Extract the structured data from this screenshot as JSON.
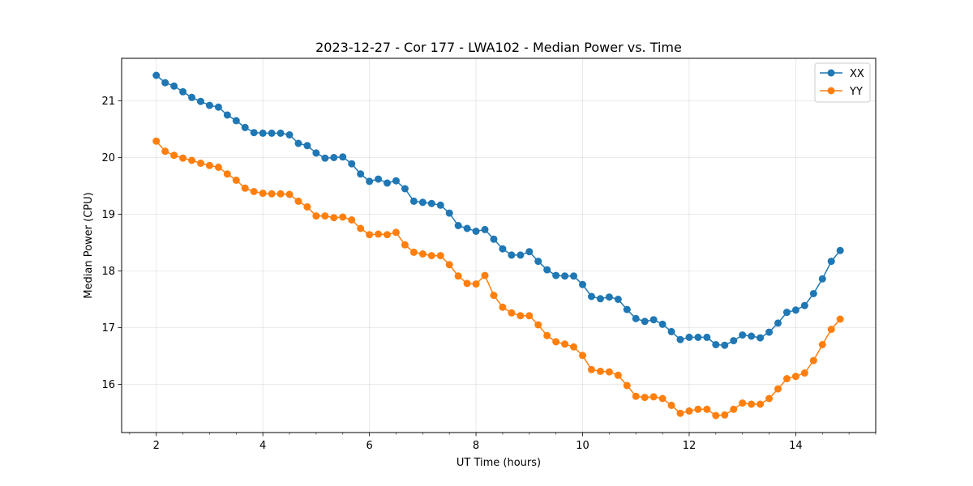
{
  "chart_data": {
    "type": "line",
    "title": "2023-12-27 - Cor 177 - LWA102 - Median Power vs. Time",
    "xlabel": "UT Time (hours)",
    "ylabel": "Median Power (CPU)",
    "xlim": [
      1.35,
      15.5
    ],
    "ylim": [
      15.15,
      21.75
    ],
    "xticks": [
      2,
      4,
      6,
      8,
      10,
      12,
      14
    ],
    "yticks": [
      16,
      17,
      18,
      19,
      20,
      21
    ],
    "grid": true,
    "legend": "top-right",
    "x": [
      2.0,
      2.1667,
      2.3333,
      2.5,
      2.6667,
      2.8333,
      3.0,
      3.1667,
      3.3333,
      3.5,
      3.6667,
      3.8333,
      4.0,
      4.1667,
      4.3333,
      4.5,
      4.6667,
      4.8333,
      5.0,
      5.1667,
      5.3333,
      5.5,
      5.6667,
      5.8333,
      6.0,
      6.1667,
      6.3333,
      6.5,
      6.6667,
      6.8333,
      7.0,
      7.1667,
      7.3333,
      7.5,
      7.6667,
      7.8333,
      8.0,
      8.1667,
      8.3333,
      8.5,
      8.6667,
      8.8333,
      9.0,
      9.1667,
      9.3333,
      9.5,
      9.6667,
      9.8333,
      10.0,
      10.1667,
      10.3333,
      10.5,
      10.6667,
      10.8333,
      11.0,
      11.1667,
      11.3333,
      11.5,
      11.6667,
      11.8333,
      12.0,
      12.1667,
      12.3333,
      12.5,
      12.6667,
      12.8333,
      13.0,
      13.1667,
      13.3333,
      13.5,
      13.6667,
      13.8333,
      14.0,
      14.1667,
      14.3333,
      14.5,
      14.6667,
      14.8333
    ],
    "series": [
      {
        "name": "XX",
        "color": "#1f77b4",
        "values": [
          21.45,
          21.32,
          21.26,
          21.16,
          21.06,
          20.99,
          20.92,
          20.89,
          20.75,
          20.65,
          20.53,
          20.44,
          20.43,
          20.43,
          20.43,
          20.4,
          20.25,
          20.21,
          20.08,
          19.99,
          20.0,
          20.01,
          19.89,
          19.71,
          19.58,
          19.62,
          19.55,
          19.59,
          19.45,
          19.23,
          19.21,
          19.19,
          19.16,
          19.02,
          18.8,
          18.75,
          18.7,
          18.73,
          18.56,
          18.39,
          18.28,
          18.28,
          18.34,
          18.17,
          18.02,
          17.92,
          17.91,
          17.91,
          17.76,
          17.55,
          17.51,
          17.54,
          17.5,
          17.32,
          17.16,
          17.11,
          17.14,
          17.06,
          16.93,
          16.79,
          16.83,
          16.83,
          16.83,
          16.7,
          16.69,
          16.77,
          16.87,
          16.85,
          16.82,
          16.92,
          17.08,
          17.27,
          17.31,
          17.39,
          17.6,
          17.86,
          18.17,
          18.36
        ]
      },
      {
        "name": "YY",
        "color": "#ff7f0e",
        "values": [
          20.29,
          20.11,
          20.04,
          19.99,
          19.95,
          19.9,
          19.86,
          19.83,
          19.71,
          19.6,
          19.46,
          19.4,
          19.37,
          19.36,
          19.36,
          19.35,
          19.23,
          19.13,
          18.97,
          18.97,
          18.94,
          18.95,
          18.9,
          18.75,
          18.64,
          18.65,
          18.64,
          18.68,
          18.46,
          18.33,
          18.3,
          18.27,
          18.27,
          18.11,
          17.91,
          17.78,
          17.77,
          17.92,
          17.57,
          17.36,
          17.26,
          17.21,
          17.21,
          17.05,
          16.86,
          16.75,
          16.71,
          16.66,
          16.51,
          16.26,
          16.23,
          16.22,
          16.16,
          15.98,
          15.79,
          15.77,
          15.78,
          15.75,
          15.63,
          15.49,
          15.53,
          15.56,
          15.56,
          15.45,
          15.46,
          15.56,
          15.67,
          15.65,
          15.65,
          15.75,
          15.92,
          16.1,
          16.14,
          16.2,
          16.42,
          16.7,
          16.97,
          17.15
        ]
      }
    ]
  }
}
